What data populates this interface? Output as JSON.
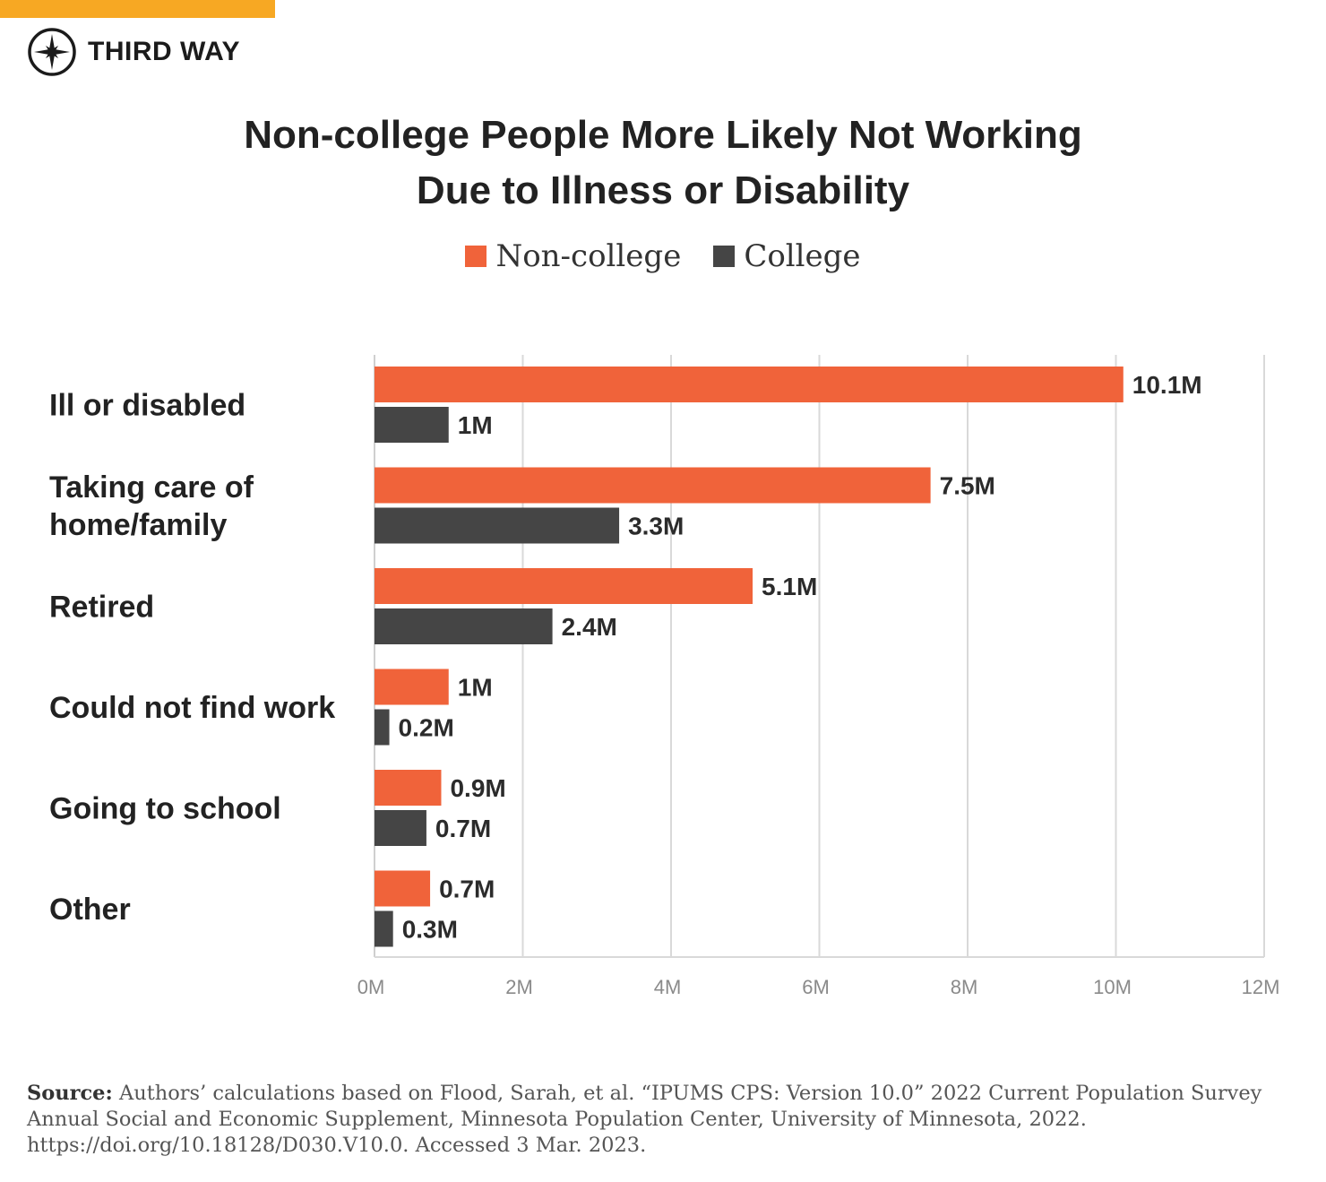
{
  "brand": {
    "name": "THIRD WAY",
    "logo_icon": "compass-star-icon",
    "accent_color": "#f7a823"
  },
  "chart_data": {
    "type": "bar",
    "orientation": "horizontal",
    "title_lines": [
      "Non-college People More Likely Not Working",
      "Due to Illness or Disability"
    ],
    "categories": [
      [
        "Ill or disabled"
      ],
      [
        "Taking care of",
        "home/family"
      ],
      [
        "Retired"
      ],
      [
        "Could not find work"
      ],
      [
        "Going to school"
      ],
      [
        "Other"
      ]
    ],
    "series": [
      {
        "name": "Non-college",
        "color": "#f0633a",
        "values": [
          10.1,
          7.5,
          5.1,
          1.0,
          0.9,
          0.75
        ],
        "labels": [
          "10.1M",
          "7.5M",
          "5.1M",
          "1M",
          "0.9M",
          "0.7M"
        ]
      },
      {
        "name": "College",
        "color": "#454545",
        "values": [
          1.0,
          3.3,
          2.4,
          0.2,
          0.7,
          0.25
        ],
        "labels": [
          "1M",
          "3.3M",
          "2.4M",
          "0.2M",
          "0.7M",
          "0.3M"
        ]
      }
    ],
    "xlim": [
      0,
      12
    ],
    "ticks": [
      0,
      2,
      4,
      6,
      8,
      10,
      12
    ],
    "tick_labels": [
      "0M",
      "2M",
      "4M",
      "6M",
      "8M",
      "10M",
      "12M"
    ],
    "legend_position": "top-center",
    "grid": true
  },
  "source": {
    "label": "Source:",
    "text": "Authors’ calculations based on Flood, Sarah, et al. “IPUMS CPS: Version 10.0” 2022 Current Population Survey Annual Social and Economic Supplement, Minnesota Population Center, University of Minnesota, 2022. https://doi.org/10.18128/D030.V10.0. Accessed 3 Mar. 2023."
  }
}
